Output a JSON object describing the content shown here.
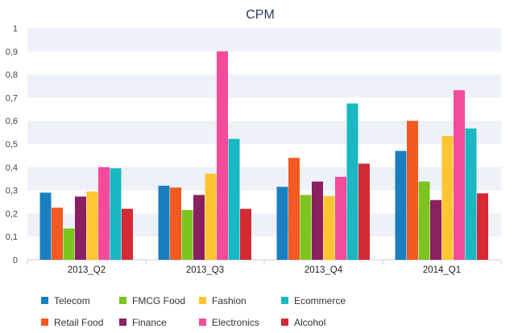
{
  "chart_data": {
    "type": "bar",
    "title": "CPM",
    "xlabel": "",
    "ylabel": "",
    "ylim": [
      0,
      1
    ],
    "yticks": [
      "0",
      "0,1",
      "0,2",
      "0,3",
      "0,4",
      "0,5",
      "0,6",
      "0,7",
      "0,8",
      "0,9",
      "1"
    ],
    "yticks_values": [
      0,
      0.1,
      0.2,
      0.3,
      0.4,
      0.5,
      0.6,
      0.7,
      0.8,
      0.9,
      1
    ],
    "grid": "horizontal-bands",
    "legend_position": "bottom",
    "categories": [
      "2013_Q2",
      "2013_Q3",
      "2013_Q4",
      "2014_Q1"
    ],
    "series": [
      {
        "name": "Telecom",
        "color": "#1a7fc0",
        "values": [
          0.29,
          0.32,
          0.315,
          0.47
        ]
      },
      {
        "name": "Retail Food",
        "color": "#f25a22",
        "values": [
          0.225,
          0.312,
          0.44,
          0.6
        ]
      },
      {
        "name": "FMCG Food",
        "color": "#7cc520",
        "values": [
          0.135,
          0.215,
          0.28,
          0.338
        ]
      },
      {
        "name": "Finance",
        "color": "#8a1f62",
        "values": [
          0.273,
          0.28,
          0.338,
          0.258
        ]
      },
      {
        "name": "Fashion",
        "color": "#ffc531",
        "values": [
          0.295,
          0.372,
          0.275,
          0.535
        ]
      },
      {
        "name": "Electronics",
        "color": "#f64a9a",
        "values": [
          0.4,
          0.9,
          0.358,
          0.732
        ]
      },
      {
        "name": "Ecommerce",
        "color": "#1ab8c3",
        "values": [
          0.395,
          0.522,
          0.675,
          0.567
        ]
      },
      {
        "name": "Alcohol",
        "color": "#d42a36",
        "values": [
          0.22,
          0.22,
          0.415,
          0.287
        ]
      }
    ],
    "legend_order": [
      "Telecom",
      "FMCG Food",
      "Fashion",
      "Ecommerce",
      "Retail Food",
      "Finance",
      "Electronics",
      "Alcohol"
    ]
  },
  "colors": {
    "band": "#eef1f7",
    "axis": "#c9ccd4",
    "title": "#1f3a5f"
  }
}
